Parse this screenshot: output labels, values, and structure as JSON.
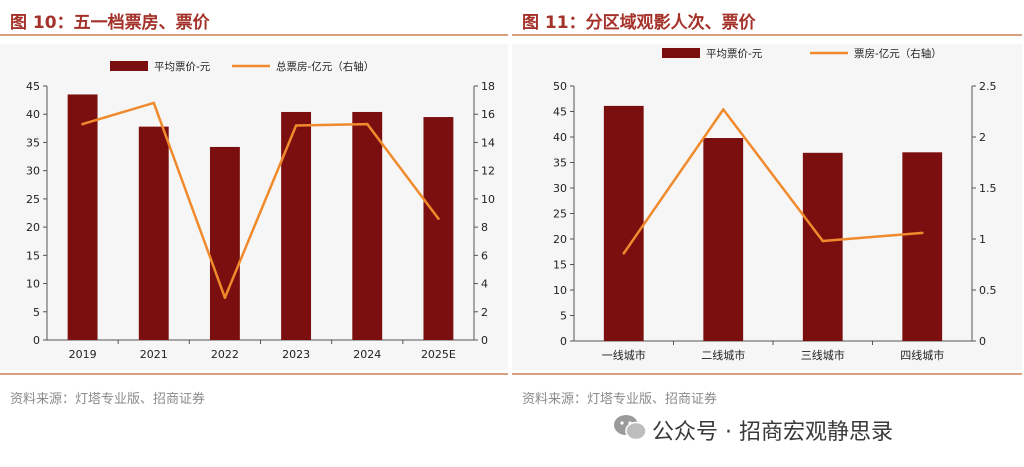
{
  "watermark": "公众号 · 招商宏观静思录",
  "colors": {
    "bar": "#7b0f0f",
    "line": "#f08a2c",
    "title": "#a4322a",
    "rule": "#d9a080",
    "plot_bg": "#f6f6f6"
  },
  "charts": [
    {
      "figure_title": "图 10：五一档票房、票价",
      "source": "资料来源：灯塔专业版、招商证券",
      "legend": {
        "bar": "平均票价-元",
        "line": "总票房-亿元（右轴）"
      }
    },
    {
      "figure_title": "图 11：分区域观影人次、票价",
      "source": "资料来源：灯塔专业版、招商证券",
      "legend": {
        "bar": "平均票价-元",
        "line": "票房-亿元（右轴）"
      }
    }
  ],
  "chart_data": [
    {
      "type": "bar+line",
      "categories": [
        "2019",
        "2021",
        "2022",
        "2023",
        "2024",
        "2025E"
      ],
      "series": [
        {
          "name": "平均票价-元",
          "type": "bar",
          "axis": "left",
          "values": [
            43.5,
            37.8,
            34.2,
            40.4,
            40.4,
            39.5
          ]
        },
        {
          "name": "总票房-亿元（右轴）",
          "type": "line",
          "axis": "right",
          "values": [
            15.3,
            16.8,
            3.0,
            15.2,
            15.3,
            8.6
          ]
        }
      ],
      "y_left": {
        "min": 0,
        "max": 45,
        "ticks": [
          0,
          5,
          10,
          15,
          20,
          25,
          30,
          35,
          40,
          45
        ]
      },
      "y_right": {
        "min": 0,
        "max": 18,
        "ticks": [
          0,
          2,
          4,
          6,
          8,
          10,
          12,
          14,
          16,
          18
        ]
      },
      "legend_position": "top",
      "grid": false
    },
    {
      "type": "bar+line",
      "categories": [
        "一线城市",
        "二线城市",
        "三线城市",
        "四线城市"
      ],
      "series": [
        {
          "name": "平均票价-元",
          "type": "bar",
          "axis": "left",
          "values": [
            46.1,
            39.8,
            36.9,
            37.0
          ]
        },
        {
          "name": "票房-亿元（右轴）",
          "type": "line",
          "axis": "right",
          "values": [
            0.86,
            2.27,
            0.98,
            1.06
          ]
        }
      ],
      "y_left": {
        "min": 0,
        "max": 50,
        "ticks": [
          0,
          5,
          10,
          15,
          20,
          25,
          30,
          35,
          40,
          45,
          50
        ]
      },
      "y_right": {
        "min": 0,
        "max": 2.5,
        "ticks": [
          0,
          0.5,
          1,
          1.5,
          2,
          2.5
        ]
      },
      "legend_position": "top",
      "grid": false
    }
  ]
}
